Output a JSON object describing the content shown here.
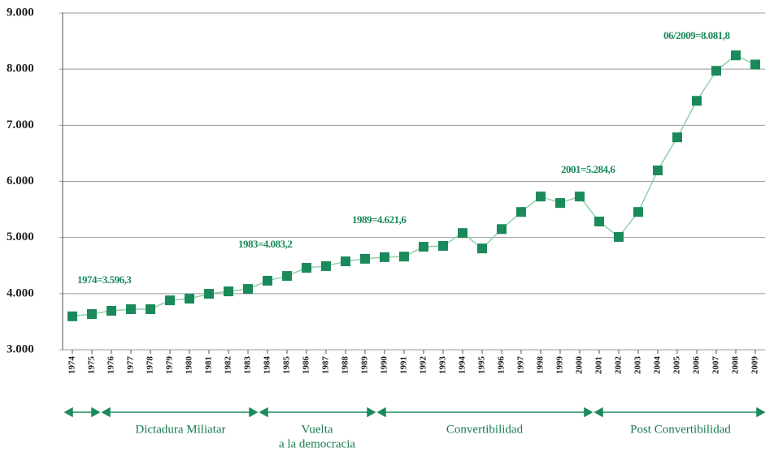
{
  "chart_data": {
    "type": "line",
    "categories": [
      "1974",
      "1975",
      "1976",
      "1977",
      "1978",
      "1979",
      "1980",
      "1981",
      "1982",
      "1983",
      "1984",
      "1985",
      "1986",
      "1987",
      "1988",
      "1989",
      "1990",
      "1991",
      "1992",
      "1993",
      "1994",
      "1995",
      "1996",
      "1997",
      "1998",
      "1999",
      "2000",
      "2001",
      "2002",
      "2003",
      "2004",
      "2005",
      "2006",
      "2007",
      "2008",
      "2009"
    ],
    "series": [
      {
        "color": "#1a8a5a",
        "values": [
          3596,
          3636,
          3694,
          3723,
          3723,
          3880,
          3910,
          3997,
          4040,
          4083,
          4230,
          4315,
          4460,
          4490,
          4575,
          4621,
          4650,
          4660,
          4835,
          4850,
          5080,
          4805,
          5150,
          5455,
          5730,
          5615,
          5730,
          5285,
          5010,
          5455,
          6195,
          6785,
          7435,
          7970,
          8245,
          8082
        ]
      }
    ],
    "line_color": "#8fd0a8",
    "ylim": [
      3000,
      9000
    ],
    "yticks": [
      {
        "value": 3000,
        "label": "3.000"
      },
      {
        "value": 4000,
        "label": "4.000"
      },
      {
        "value": 5000,
        "label": "5.000"
      },
      {
        "value": 6000,
        "label": "6.000"
      },
      {
        "value": 7000,
        "label": "7.000"
      },
      {
        "value": 8000,
        "label": "8.000"
      },
      {
        "value": 9000,
        "label": "9.000"
      }
    ],
    "grid": true,
    "annotations": [
      "1974=3.596,3",
      "1983=4.083,2",
      "1989=4.621,6",
      "2001=5.284,6",
      "06/2009=8.081,8"
    ],
    "periods": [
      [
        "Dictadura Miliatar"
      ],
      [
        "Vuelta",
        "a la democracia"
      ],
      [
        "Convertibilidad"
      ],
      [
        "Post Convertibilidad"
      ]
    ]
  }
}
